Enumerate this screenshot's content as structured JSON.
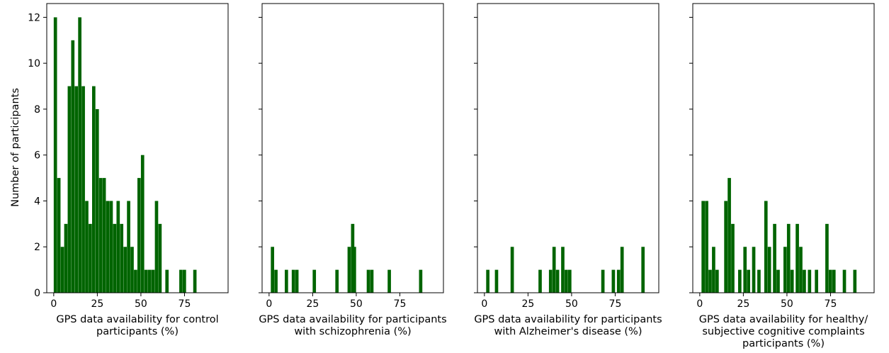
{
  "chart_data": {
    "type": "bar",
    "shared_y": true,
    "ylabel": "Number of participants",
    "ylim": [
      0,
      12.6
    ],
    "yticks": [
      0,
      2,
      4,
      6,
      8,
      10,
      12
    ],
    "bar_color": "#006400",
    "panels": [
      {
        "xlabel": [
          "GPS data availability for control",
          "participants (%)"
        ],
        "xlim": [
          -4,
          100
        ],
        "xticks": [
          "0",
          "25",
          "50",
          "75"
        ],
        "bin_width": 1.9,
        "bars": [
          {
            "x": 0,
            "y": 12
          },
          {
            "x": 2,
            "y": 5
          },
          {
            "x": 4,
            "y": 2
          },
          {
            "x": 6,
            "y": 3
          },
          {
            "x": 8,
            "y": 9
          },
          {
            "x": 10,
            "y": 11
          },
          {
            "x": 12,
            "y": 9
          },
          {
            "x": 14,
            "y": 12
          },
          {
            "x": 16,
            "y": 9
          },
          {
            "x": 18,
            "y": 4
          },
          {
            "x": 20,
            "y": 3
          },
          {
            "x": 22,
            "y": 9
          },
          {
            "x": 24,
            "y": 8
          },
          {
            "x": 26,
            "y": 5
          },
          {
            "x": 28,
            "y": 5
          },
          {
            "x": 30,
            "y": 4
          },
          {
            "x": 32,
            "y": 4
          },
          {
            "x": 34,
            "y": 3
          },
          {
            "x": 36,
            "y": 4
          },
          {
            "x": 38,
            "y": 3
          },
          {
            "x": 40,
            "y": 2
          },
          {
            "x": 42,
            "y": 4
          },
          {
            "x": 44,
            "y": 2
          },
          {
            "x": 46,
            "y": 1
          },
          {
            "x": 48,
            "y": 5
          },
          {
            "x": 50,
            "y": 6
          },
          {
            "x": 52,
            "y": 1
          },
          {
            "x": 54,
            "y": 1
          },
          {
            "x": 56,
            "y": 1
          },
          {
            "x": 58,
            "y": 4
          },
          {
            "x": 60,
            "y": 3
          },
          {
            "x": 64,
            "y": 1
          },
          {
            "x": 72,
            "y": 1
          },
          {
            "x": 74,
            "y": 1
          },
          {
            "x": 80,
            "y": 1
          }
        ]
      },
      {
        "xlabel": [
          "GPS data availability for participants",
          "with schizophrenia (%)"
        ],
        "xlim": [
          -4,
          100
        ],
        "xticks": [
          "0",
          "25",
          "50",
          "75"
        ],
        "bin_width": 1.9,
        "bars": [
          {
            "x": 1,
            "y": 2
          },
          {
            "x": 3,
            "y": 1
          },
          {
            "x": 9,
            "y": 1
          },
          {
            "x": 13,
            "y": 1
          },
          {
            "x": 15,
            "y": 1
          },
          {
            "x": 25,
            "y": 1
          },
          {
            "x": 38,
            "y": 1
          },
          {
            "x": 45,
            "y": 2
          },
          {
            "x": 47,
            "y": 3
          },
          {
            "x": 48,
            "y": 2
          },
          {
            "x": 56,
            "y": 1
          },
          {
            "x": 58,
            "y": 1
          },
          {
            "x": 68,
            "y": 1
          },
          {
            "x": 86,
            "y": 1
          }
        ]
      },
      {
        "xlabel": [
          "GPS data availability for participants",
          "with Alzheimer's disease (%)"
        ],
        "xlim": [
          -4,
          100
        ],
        "xticks": [
          "0",
          "25",
          "50",
          "75"
        ],
        "bin_width": 1.9,
        "bars": [
          {
            "x": 1,
            "y": 1
          },
          {
            "x": 6,
            "y": 1
          },
          {
            "x": 15,
            "y": 2
          },
          {
            "x": 31,
            "y": 1
          },
          {
            "x": 37,
            "y": 1
          },
          {
            "x": 39,
            "y": 2
          },
          {
            "x": 41,
            "y": 1
          },
          {
            "x": 44,
            "y": 2
          },
          {
            "x": 46,
            "y": 1
          },
          {
            "x": 48,
            "y": 1
          },
          {
            "x": 67,
            "y": 1
          },
          {
            "x": 73,
            "y": 1
          },
          {
            "x": 76,
            "y": 1
          },
          {
            "x": 78,
            "y": 2
          },
          {
            "x": 90,
            "y": 2
          }
        ]
      },
      {
        "xlabel": [
          "GPS data availability for healthy/",
          "subjective cognitive complaints",
          "participants (%)"
        ],
        "xlim": [
          -4,
          100
        ],
        "xticks": [
          "0",
          "25",
          "50",
          "75"
        ],
        "bin_width": 1.9,
        "bars": [
          {
            "x": 1,
            "y": 4
          },
          {
            "x": 3,
            "y": 4
          },
          {
            "x": 5,
            "y": 1
          },
          {
            "x": 7,
            "y": 2
          },
          {
            "x": 9,
            "y": 1
          },
          {
            "x": 14,
            "y": 4
          },
          {
            "x": 16,
            "y": 5
          },
          {
            "x": 18,
            "y": 3
          },
          {
            "x": 22,
            "y": 1
          },
          {
            "x": 25,
            "y": 2
          },
          {
            "x": 27,
            "y": 1
          },
          {
            "x": 30,
            "y": 2
          },
          {
            "x": 33,
            "y": 1
          },
          {
            "x": 37,
            "y": 4
          },
          {
            "x": 39,
            "y": 2
          },
          {
            "x": 42,
            "y": 3
          },
          {
            "x": 44,
            "y": 1
          },
          {
            "x": 48,
            "y": 2
          },
          {
            "x": 50,
            "y": 3
          },
          {
            "x": 52,
            "y": 1
          },
          {
            "x": 55,
            "y": 3
          },
          {
            "x": 57,
            "y": 2
          },
          {
            "x": 59,
            "y": 1
          },
          {
            "x": 62,
            "y": 1
          },
          {
            "x": 66,
            "y": 1
          },
          {
            "x": 72,
            "y": 3
          },
          {
            "x": 74,
            "y": 1
          },
          {
            "x": 76,
            "y": 1
          },
          {
            "x": 82,
            "y": 1
          },
          {
            "x": 88,
            "y": 1
          }
        ]
      }
    ]
  }
}
